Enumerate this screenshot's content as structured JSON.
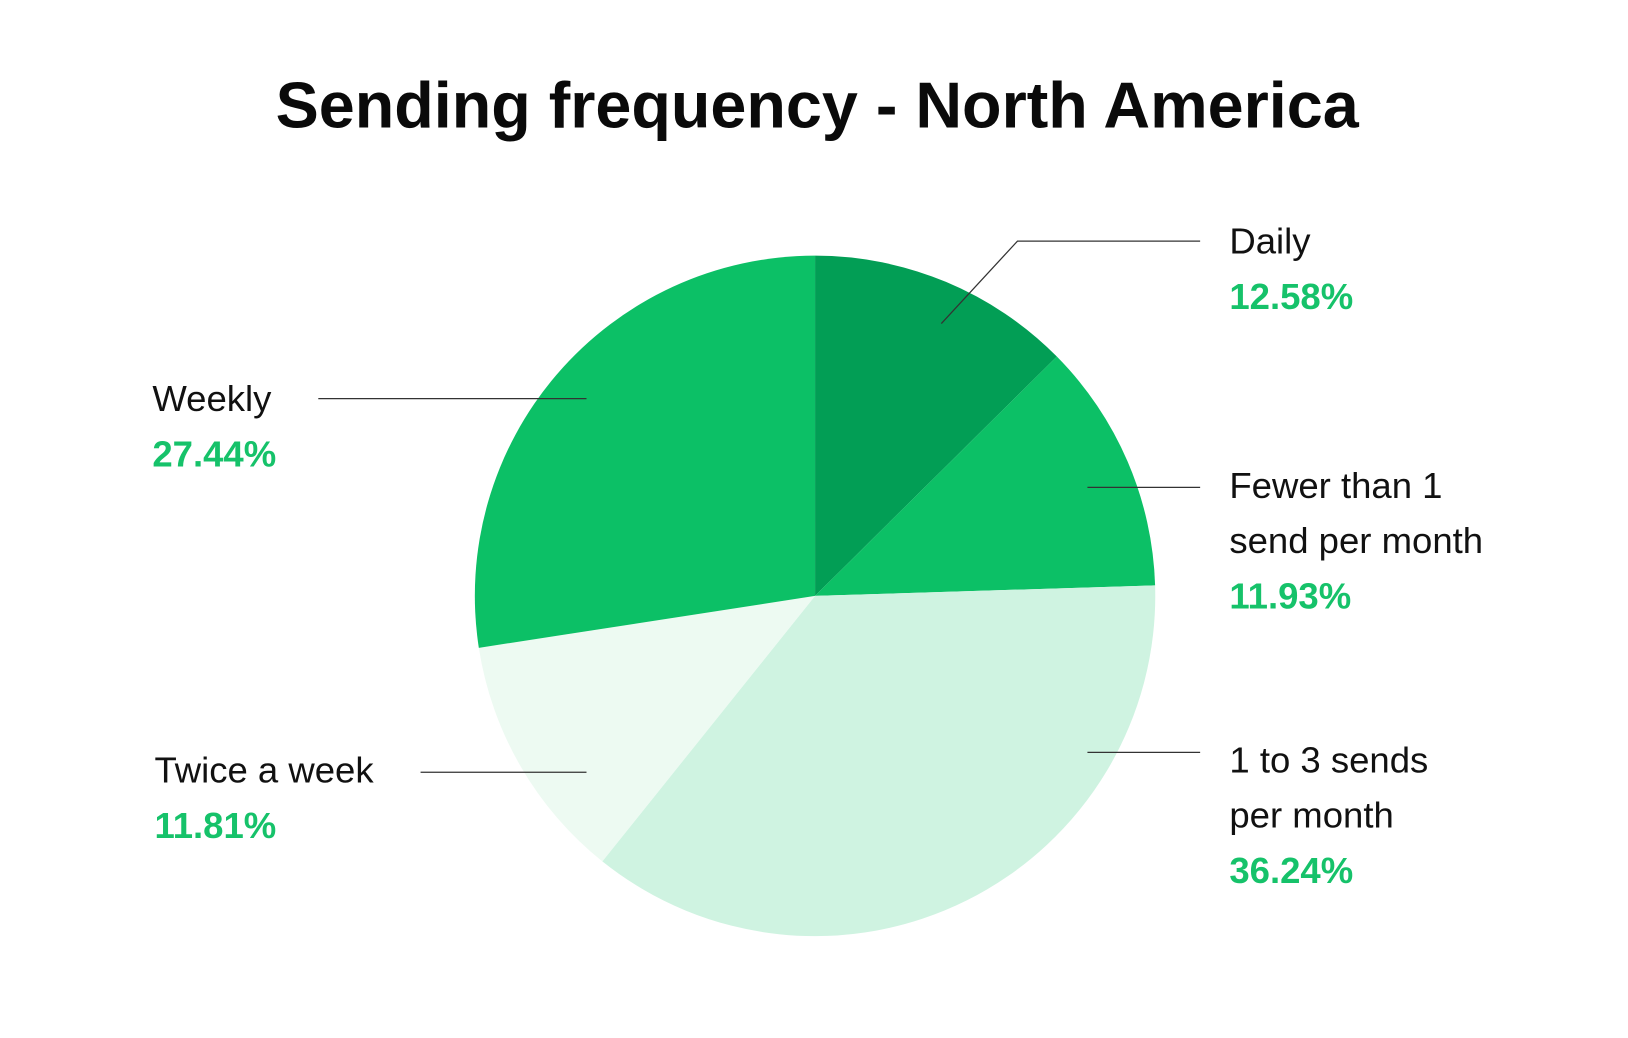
{
  "chart_data": {
    "type": "pie",
    "title": "Sending frequency -  North America",
    "start_angle": "top",
    "direction": "clockwise",
    "slices": [
      {
        "label": [
          "Daily"
        ],
        "value": 12.58,
        "display": "12.58%",
        "color": "#029e55"
      },
      {
        "label": [
          "Fewer than 1",
          "send per month"
        ],
        "value": 11.93,
        "display": "11.93%",
        "color": "#0cc066"
      },
      {
        "label": [
          "1 to 3 sends",
          "per month"
        ],
        "value": 36.24,
        "display": "36.24%",
        "color": "#cff3e1"
      },
      {
        "label": [
          "Twice a week"
        ],
        "value": 11.81,
        "display": "11.81%",
        "color": "#edfaf2"
      },
      {
        "label": [
          "Weekly"
        ],
        "value": 27.44,
        "display": "27.44%",
        "color": "#0cc066"
      }
    ],
    "percent_color": "#16c26a"
  }
}
